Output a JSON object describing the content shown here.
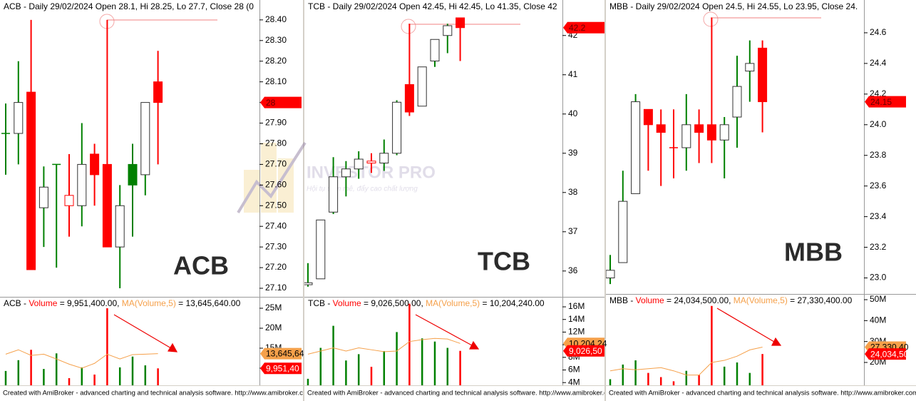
{
  "chart_data": [
    {
      "type": "candlestick",
      "title": "ACB - Daily 29/02/2024 Open 28.1, Hi 28.25, Lo 27.7, Close 28 (0",
      "annotation": "ACB",
      "last_tag": "28",
      "open": [
        27.85,
        27.85,
        28.05,
        27.49,
        27.7,
        27.5,
        27.5,
        27.75,
        27.7,
        27.3,
        27.7,
        27.65,
        28.1
      ],
      "high": [
        27.995,
        28.2,
        28.4,
        27.69,
        27.7,
        27.75,
        27.9,
        27.8,
        28.4,
        27.6,
        27.8,
        28.0,
        28.25
      ],
      "low": [
        27.65,
        27.7,
        27.19,
        27.3,
        27.2,
        27.35,
        27.4,
        27.5,
        27.3,
        27.1,
        27.35,
        27.55,
        27.7
      ],
      "close": [
        27.85,
        28.0,
        27.19,
        27.59,
        27.7,
        27.55,
        27.7,
        27.65,
        27.3,
        27.5,
        27.6,
        28.0,
        28.0
      ],
      "up_color": "#008000",
      "down_color": "#ff0000",
      "ylim": [
        27.062,
        28.486
      ],
      "yticks": [
        {
          "value": 28.4,
          "label": "28.40"
        },
        {
          "value": 28.3,
          "label": "28.30"
        },
        {
          "value": 28.2,
          "label": "28.20"
        },
        {
          "value": 28.1,
          "label": "28.10"
        },
        {
          "value": 28,
          "label": "28.00"
        },
        {
          "value": 27.9,
          "label": "27.90"
        },
        {
          "value": 27.8,
          "label": "27.80"
        },
        {
          "value": 27.7,
          "label": "27.70"
        },
        {
          "value": 27.6,
          "label": "27.60"
        },
        {
          "value": 27.5,
          "label": "27.50"
        },
        {
          "value": 27.4,
          "label": "27.40"
        },
        {
          "value": 27.3,
          "label": "27.30"
        },
        {
          "value": 27.2,
          "label": "27.20"
        },
        {
          "value": 27.1,
          "label": "27.10"
        }
      ]
    },
    {
      "type": "candlestick",
      "title": "TCB - Daily 29/02/2024 Open 42.45, Hi 42.45, Lo 41.35, Close 42",
      "annotation": "TCB",
      "last_tag": "42.2",
      "open": [
        35.65,
        35.8,
        37.5,
        38.4,
        38.6,
        38.75,
        38.75,
        39.0,
        40.75,
        40.2,
        41.35,
        42.0,
        42.45
      ],
      "high": [
        36.2,
        37.3,
        38.9,
        38.8,
        39.05,
        39.0,
        39.35,
        40.35,
        42.3,
        41.2,
        41.9,
        42.3,
        42.45
      ],
      "low": [
        35.6,
        35.8,
        37.45,
        37.9,
        38.35,
        38.5,
        38.55,
        38.95,
        39.95,
        40.2,
        41.2,
        41.55,
        41.35
      ],
      "close": [
        35.7,
        37.3,
        38.4,
        38.6,
        38.85,
        38.8,
        39.0,
        40.3,
        40.05,
        41.2,
        41.9,
        42.25,
        42.2
      ],
      "up_color": "#008000",
      "down_color": "#ff0000",
      "ylim": [
        35.36,
        42.85
      ],
      "yticks": [
        42,
        41,
        40,
        39,
        38,
        37,
        36
      ]
    },
    {
      "type": "candlestick",
      "title": "MBB - Daily 29/02/2024 Open 24.5, Hi 24.55, Lo 23.95, Close 24.",
      "annotation": "MBB",
      "last_tag": "24.15",
      "open": [
        23.0,
        23.1,
        23.55,
        24.1,
        24.0,
        23.85,
        23.85,
        24.0,
        24.0,
        23.9,
        24.05,
        24.35,
        24.5
      ],
      "high": [
        23.15,
        23.7,
        24.2,
        24.1,
        24.1,
        24.1,
        24.2,
        24.1,
        24.7,
        24.05,
        24.45,
        24.55,
        24.55
      ],
      "low": [
        22.96,
        23.1,
        23.55,
        23.7,
        23.6,
        23.65,
        23.7,
        23.75,
        23.75,
        23.65,
        23.85,
        24.15,
        23.95
      ],
      "close": [
        23.05,
        23.5,
        24.15,
        24.0,
        23.95,
        23.85,
        24.0,
        23.95,
        23.9,
        24.0,
        24.25,
        24.4,
        24.15
      ],
      "up_color": "#008000",
      "down_color": "#ff0000",
      "ylim": [
        22.9,
        24.8
      ],
      "yticks": [
        {
          "value": 24.6,
          "label": "24.6"
        },
        {
          "value": 24.4,
          "label": "24.4"
        },
        {
          "value": 24.2,
          "label": "24.2"
        },
        {
          "value": 24,
          "label": "24.0"
        },
        {
          "value": 23.8,
          "label": "23.8"
        },
        {
          "value": 23.6,
          "label": "23.6"
        },
        {
          "value": 23.4,
          "label": "23.4"
        },
        {
          "value": 23.2,
          "label": "23.2"
        },
        {
          "value": 23,
          "label": "23.0"
        }
      ]
    },
    {
      "type": "volume",
      "header": [
        "ACB - ",
        " = 9,951,400.00, ",
        " = 13,645,640.00"
      ],
      "series": [
        {
          "name": "Volume",
          "color": "#ff0000",
          "tag": "9,951,40",
          "values": [
            9300000,
            12000000,
            14600000,
            9800000,
            13700000,
            7500000,
            10200000,
            8400000,
            25000000,
            10200000,
            12900000,
            10700000,
            9951400
          ]
        },
        {
          "name": "MA(Volume,5)",
          "color": "#f5a04a",
          "tag": "13,645,64",
          "values": [
            13500000,
            14600000,
            13200000,
            13500000,
            12300000,
            11000000,
            10000000,
            11200000,
            13500000,
            12300000,
            13400000,
            13500000,
            13645640
          ]
        }
      ],
      "ylim": [
        5710000,
        27500000
      ],
      "yticks": [
        {
          "value": 25000000,
          "label": "25M"
        },
        {
          "value": 20000000,
          "label": "20M"
        },
        {
          "value": 15000000,
          "label": "15M"
        },
        {
          "value": 10000000,
          "label": "10M"
        }
      ]
    },
    {
      "type": "volume",
      "header": [
        "TCB - ",
        " = 9,026,500.00, ",
        " = 10,204,240.00"
      ],
      "series": [
        {
          "name": "Volume",
          "color": "#ff0000",
          "tag": "9,026,50",
          "values": [
            4600000,
            9500000,
            13000000,
            7500000,
            8500000,
            6500000,
            9000000,
            12000000,
            16500000,
            11000000,
            10500000,
            9500000,
            9026500
          ]
        },
        {
          "name": "MA(Volume,5)",
          "color": "#f5a04a",
          "tag": "10,204,24",
          "values": [
            8500000,
            9000000,
            9500000,
            9000000,
            9500000,
            9200000,
            8900000,
            9000000,
            10500000,
            10800000,
            11000000,
            10900000,
            10204240
          ]
        }
      ],
      "ylim": [
        3570000,
        17360000
      ],
      "yticks": [
        {
          "value": 16000000,
          "label": "16M"
        },
        {
          "value": 14000000,
          "label": "14M"
        },
        {
          "value": 12000000,
          "label": "12M"
        },
        {
          "value": 10000000,
          "label": "10M"
        },
        {
          "value": 8000000,
          "label": "8M"
        },
        {
          "value": 6000000,
          "label": "6M"
        },
        {
          "value": 4000000,
          "label": "4M"
        }
      ]
    },
    {
      "type": "volume",
      "header": [
        "MBB - ",
        " = 24,034,500.00, ",
        " = 27,330,400.00"
      ],
      "series": [
        {
          "name": "Volume",
          "color": "#ff0000",
          "tag": "24,034,50",
          "values": [
            12000000,
            19000000,
            21000000,
            15000000,
            13000000,
            11000000,
            16000000,
            14000000,
            47000000,
            18000000,
            20000000,
            15000000,
            24034500
          ]
        },
        {
          "name": "MA(Volume,5)",
          "color": "#f5a04a",
          "tag": "27,330,40",
          "values": [
            16000000,
            17000000,
            16500000,
            17000000,
            17500000,
            16000000,
            14000000,
            14000000,
            20000000,
            21000000,
            23000000,
            26000000,
            27330400
          ]
        }
      ],
      "ylim": [
        9080000,
        52050000
      ],
      "yticks": [
        {
          "value": 50000000,
          "label": "50M"
        },
        {
          "value": 40000000,
          "label": "40M"
        },
        {
          "value": 30000000,
          "label": "30M"
        },
        {
          "value": 20000000,
          "label": "20M"
        }
      ]
    }
  ],
  "watermark": {
    "title": "INVESTOR PRO",
    "tagline": "Hội tụ đam mê, đẩy cao chất lượng"
  },
  "footer": [
    "Created with AmiBroker - advanced charting and technical analysis software. http://www.amibroker.com",
    "Created with AmiBroker - advanced charting and technical analysis software. http://www.amibroker.com",
    "Created with AmiBroker - advanced charting and technical analysis software. http://www.amibroker.com"
  ]
}
